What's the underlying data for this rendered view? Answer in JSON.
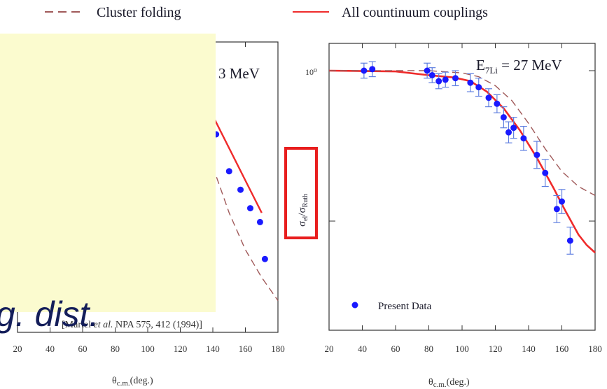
{
  "legend": {
    "items": [
      {
        "label": "Cluster folding",
        "style": "dashed",
        "color": "#a05a5a"
      },
      {
        "label": "All countinuum couplings",
        "style": "solid",
        "color": "#ef2b2b"
      }
    ]
  },
  "overlay": {
    "text": "g. dist.",
    "background": "#fbfbcf",
    "text_color": "#141e5a"
  },
  "highlight_color": "#e81e1e",
  "chart_data": [
    {
      "type": "scatter",
      "energy_label": "3 MeV",
      "citation": {
        "prefix": "[Martel ",
        "italic": "et al.",
        "suffix": " NPA 575, 412 (1994)]"
      },
      "xlabel": "θc.m.(deg.)",
      "x_ticks": [
        20,
        40,
        60,
        80,
        100,
        120,
        140,
        160,
        180
      ],
      "xlim": [
        20,
        180
      ],
      "series": [
        {
          "name": "Present Data",
          "marker": "dot",
          "color": "#1a1aff",
          "points": [
            [
              142,
              0.8
            ],
            [
              150,
              0.72
            ],
            [
              157,
              0.68
            ],
            [
              163,
              0.64
            ],
            [
              169,
              0.61
            ],
            [
              172,
              0.53
            ]
          ]
        },
        {
          "name": "All countinuum couplings",
          "style": "solid",
          "color": "#ef2b2b",
          "points": [
            [
              140,
              0.84
            ],
            [
              150,
              0.77
            ],
            [
              160,
              0.7
            ],
            [
              170,
              0.63
            ]
          ]
        },
        {
          "name": "Cluster folding",
          "style": "dashed",
          "color": "#a05a5a",
          "points": [
            [
              140,
              0.73
            ],
            [
              150,
              0.63
            ],
            [
              160,
              0.55
            ],
            [
              170,
              0.49
            ],
            [
              180,
              0.44
            ]
          ]
        }
      ]
    },
    {
      "type": "scatter",
      "energy_label": {
        "prefix": "E",
        "sub": "7Li",
        "suffix": " = 27 MeV"
      },
      "ylabel": {
        "main": "σ",
        "sub1": "el",
        "slash": "/σ",
        "sub2": "Ruth"
      },
      "y_tick_label": "10⁰",
      "y_scale": "log",
      "xlabel": "θc.m.(deg.)",
      "x_ticks": [
        20,
        40,
        60,
        80,
        100,
        120,
        140,
        160,
        180
      ],
      "xlim": [
        20,
        180
      ],
      "legend_entry": "Present Data",
      "series": [
        {
          "name": "Present Data",
          "marker": "dot",
          "color": "#1a1aff",
          "points": [
            {
              "x": 41,
              "y": 1.0,
              "err": 0.05
            },
            {
              "x": 46,
              "y": 1.01,
              "err": 0.05
            },
            {
              "x": 79,
              "y": 1.0,
              "err": 0.05
            },
            {
              "x": 82,
              "y": 0.97,
              "err": 0.05
            },
            {
              "x": 86,
              "y": 0.93,
              "err": 0.05
            },
            {
              "x": 90,
              "y": 0.94,
              "err": 0.05
            },
            {
              "x": 96,
              "y": 0.95,
              "err": 0.05
            },
            {
              "x": 105,
              "y": 0.92,
              "err": 0.06
            },
            {
              "x": 110,
              "y": 0.89,
              "err": 0.06
            },
            {
              "x": 116,
              "y": 0.82,
              "err": 0.06
            },
            {
              "x": 121,
              "y": 0.78,
              "err": 0.06
            },
            {
              "x": 125,
              "y": 0.69,
              "err": 0.07
            },
            {
              "x": 128,
              "y": 0.59,
              "err": 0.07
            },
            {
              "x": 131,
              "y": 0.62,
              "err": 0.07
            },
            {
              "x": 137,
              "y": 0.55,
              "err": 0.08
            },
            {
              "x": 145,
              "y": 0.44,
              "err": 0.09
            },
            {
              "x": 150,
              "y": 0.32,
              "err": 0.09
            },
            {
              "x": 157,
              "y": 0.08,
              "err": 0.09
            },
            {
              "x": 160,
              "y": 0.13,
              "err": 0.08
            },
            {
              "x": 165,
              "y": -0.13,
              "err": 0.09
            }
          ]
        },
        {
          "name": "All countinuum couplings",
          "style": "solid",
          "color": "#ef2b2b",
          "points": [
            [
              20,
              1.0
            ],
            [
              60,
              0.995
            ],
            [
              80,
              0.97
            ],
            [
              95,
              0.955
            ],
            [
              105,
              0.93
            ],
            [
              115,
              0.86
            ],
            [
              125,
              0.75
            ],
            [
              135,
              0.6
            ],
            [
              145,
              0.42
            ],
            [
              155,
              0.22
            ],
            [
              162,
              0.07
            ],
            [
              170,
              -0.09
            ],
            [
              175,
              -0.16
            ],
            [
              180,
              -0.21
            ]
          ]
        },
        {
          "name": "Cluster folding",
          "style": "dashed",
          "color": "#a05a5a",
          "points": [
            [
              20,
              1.0
            ],
            [
              80,
              1.0
            ],
            [
              100,
              0.985
            ],
            [
              110,
              0.96
            ],
            [
              120,
              0.9
            ],
            [
              130,
              0.8
            ],
            [
              140,
              0.65
            ],
            [
              150,
              0.48
            ],
            [
              160,
              0.33
            ],
            [
              170,
              0.23
            ],
            [
              180,
              0.17
            ]
          ]
        }
      ]
    }
  ]
}
